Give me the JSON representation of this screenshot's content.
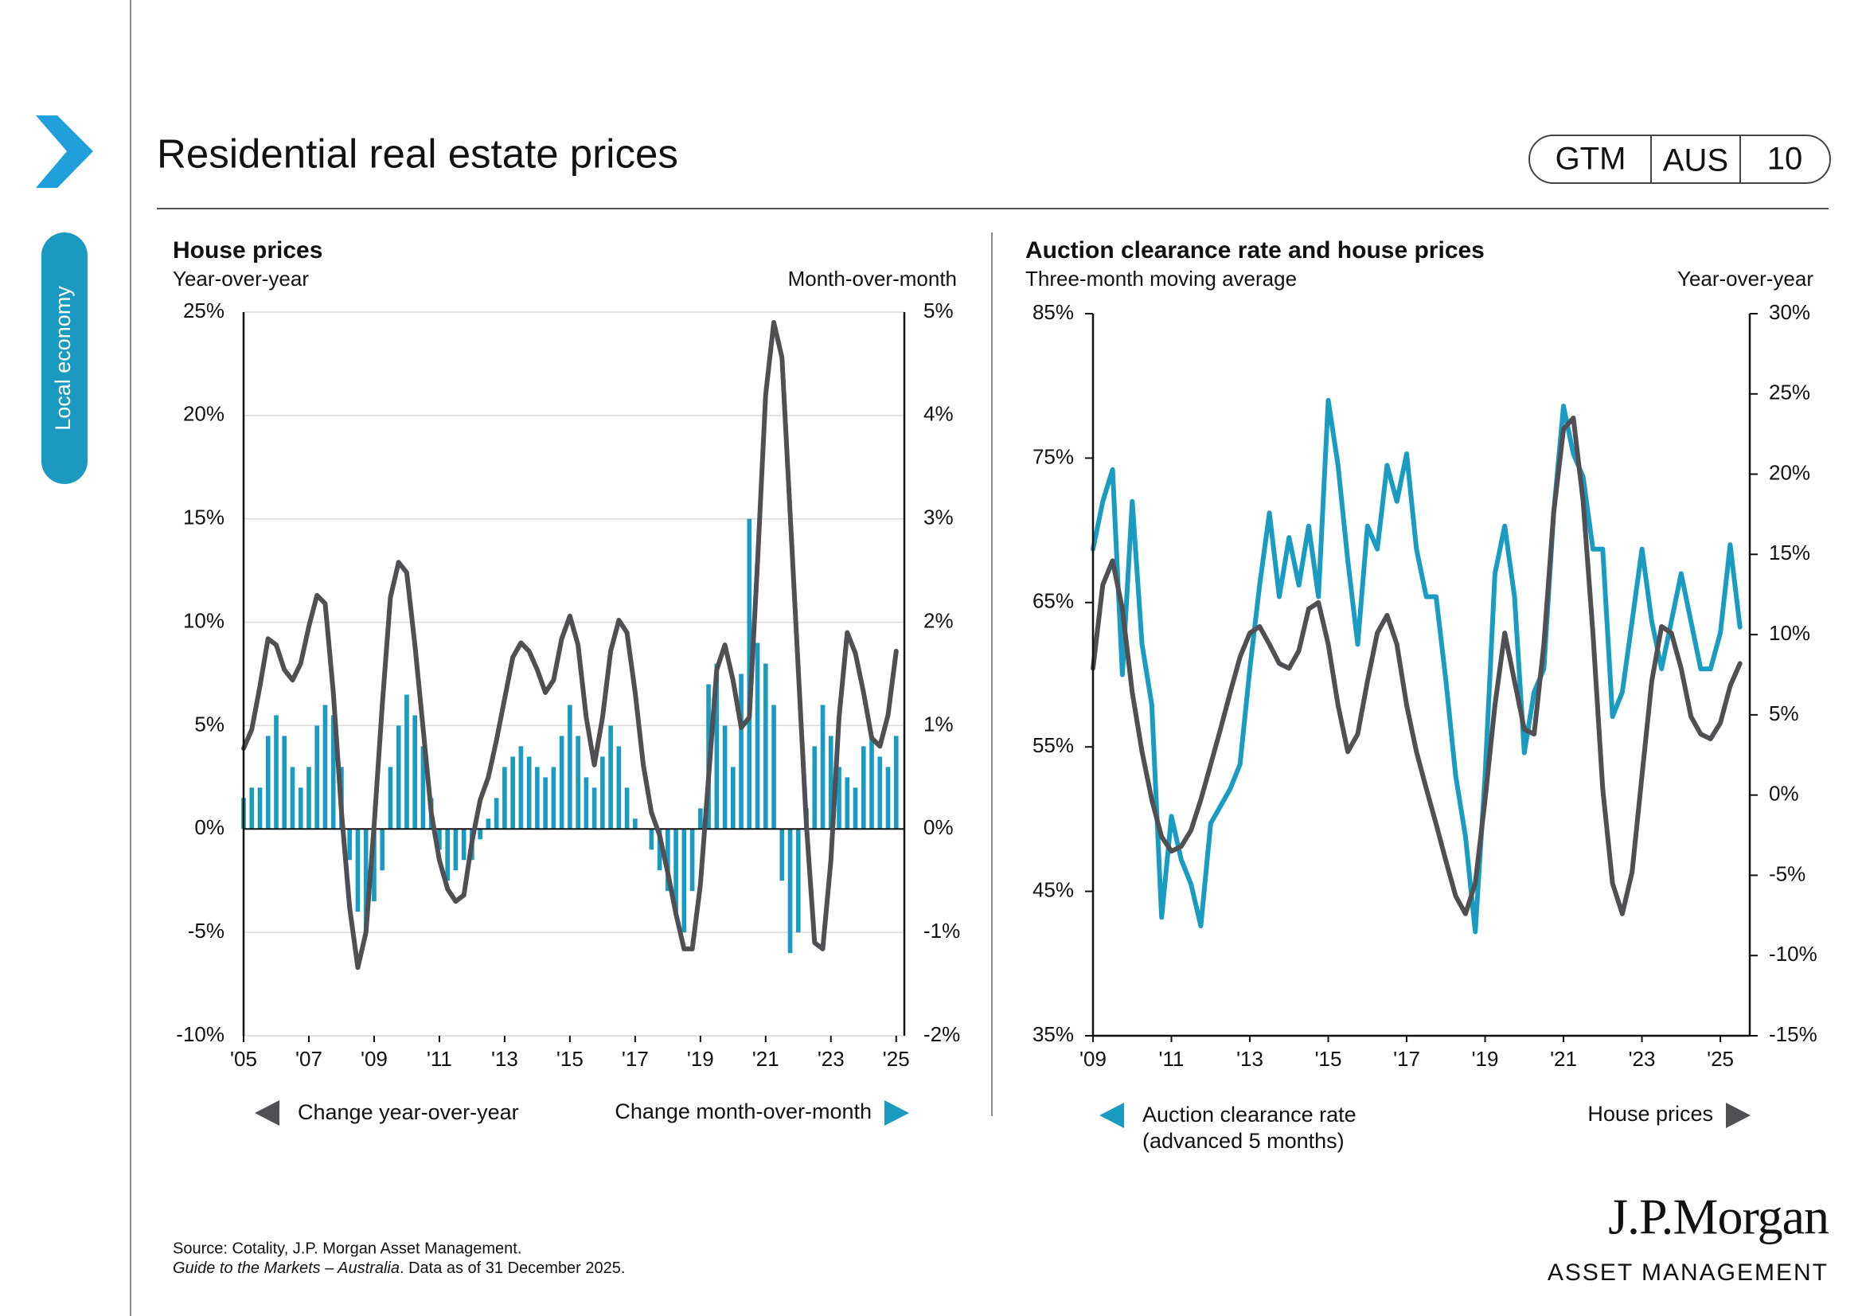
{
  "page": {
    "title": "Residential real estate prices",
    "badge": [
      "GTM",
      "AUS",
      "10"
    ],
    "sidebar_label": "Local economy",
    "source": "Source: Cotality, J.P. Morgan Asset Management.",
    "guide_title": "Guide to the Markets – Australia",
    "data_note": ". Data as of 31 December 2025.",
    "logo_main": "J.P.Morgan",
    "logo_sub": "ASSET MANAGEMENT"
  },
  "chart_data": [
    {
      "type": "combo",
      "title": "House prices",
      "subtitle": "Year-over-year",
      "y2_label": "Month-over-month",
      "grid": true,
      "x": [
        2005,
        2005.25,
        2005.5,
        2005.75,
        2006,
        2006.25,
        2006.5,
        2006.75,
        2007,
        2007.25,
        2007.5,
        2007.75,
        2008,
        2008.25,
        2008.5,
        2008.75,
        2009,
        2009.25,
        2009.5,
        2009.75,
        2010,
        2010.25,
        2010.5,
        2010.75,
        2011,
        2011.25,
        2011.5,
        2011.75,
        2012,
        2012.25,
        2012.5,
        2012.75,
        2013,
        2013.25,
        2013.5,
        2013.75,
        2014,
        2014.25,
        2014.5,
        2014.75,
        2015,
        2015.25,
        2015.5,
        2015.75,
        2016,
        2016.25,
        2016.5,
        2016.75,
        2017,
        2017.25,
        2017.5,
        2017.75,
        2018,
        2018.25,
        2018.5,
        2018.75,
        2019,
        2019.25,
        2019.5,
        2019.75,
        2020,
        2020.25,
        2020.5,
        2020.75,
        2021,
        2021.25,
        2021.5,
        2021.75,
        2022,
        2022.25,
        2022.5,
        2022.75,
        2023,
        2023.25,
        2023.5,
        2023.75,
        2024,
        2024.25,
        2024.5,
        2024.75,
        2025
      ],
      "xlim": [
        2005,
        2025.25
      ],
      "xticks": [
        {
          "value": 2005,
          "label": "'05"
        },
        {
          "value": 2007,
          "label": "'07"
        },
        {
          "value": 2009,
          "label": "'09"
        },
        {
          "value": 2011,
          "label": "'11"
        },
        {
          "value": 2013,
          "label": "'13"
        },
        {
          "value": 2015,
          "label": "'15"
        },
        {
          "value": 2017,
          "label": "'17"
        },
        {
          "value": 2019,
          "label": "'19"
        },
        {
          "value": 2021,
          "label": "'21"
        },
        {
          "value": 2023,
          "label": "'23"
        },
        {
          "value": 2025,
          "label": "'25"
        }
      ],
      "ylim": [
        -10,
        25
      ],
      "yticks": [
        {
          "value": -10,
          "label": "-10%"
        },
        {
          "value": -5,
          "label": "-5%"
        },
        {
          "value": 0,
          "label": "0%"
        },
        {
          "value": 5,
          "label": "5%"
        },
        {
          "value": 10,
          "label": "10%"
        },
        {
          "value": 15,
          "label": "15%"
        },
        {
          "value": 20,
          "label": "20%"
        },
        {
          "value": 25,
          "label": "25%"
        }
      ],
      "y2lim": [
        -2,
        5
      ],
      "y2ticks": [
        {
          "value": -2,
          "label": "-2%"
        },
        {
          "value": -1,
          "label": "-1%"
        },
        {
          "value": 0,
          "label": "0%"
        },
        {
          "value": 1,
          "label": "1%"
        },
        {
          "value": 2,
          "label": "2%"
        },
        {
          "value": 3,
          "label": "3%"
        },
        {
          "value": 4,
          "label": "4%"
        },
        {
          "value": 5,
          "label": "5%"
        }
      ],
      "series": [
        {
          "name": "Change year-over-year",
          "type": "line",
          "color": "#505054",
          "values": [
            3.9,
            4.8,
            6.9,
            9.2,
            8.9,
            7.7,
            7.2,
            8.0,
            9.8,
            11.3,
            10.9,
            6.6,
            0.8,
            -3.8,
            -6.7,
            -5.0,
            0.2,
            6.0,
            11.2,
            12.9,
            12.4,
            8.9,
            4.9,
            0.8,
            -1.5,
            -2.9,
            -3.5,
            -3.2,
            -0.6,
            1.4,
            2.5,
            4.3,
            6.3,
            8.3,
            9.0,
            8.6,
            7.7,
            6.6,
            7.2,
            9.2,
            10.3,
            8.9,
            5.4,
            3.1,
            5.4,
            8.6,
            10.1,
            9.5,
            6.6,
            3.1,
            0.8,
            -0.3,
            -2.1,
            -4.1,
            -5.8,
            -5.8,
            -2.7,
            2.5,
            7.7,
            8.9,
            7.2,
            4.9,
            5.4,
            12.9,
            21.0,
            24.5,
            22.8,
            15.3,
            7.7,
            0.2,
            -5.5,
            -5.8,
            -1.5,
            5.4,
            9.5,
            8.5,
            6.6,
            4.4,
            4.0,
            5.5,
            8.6
          ]
        },
        {
          "name": "Change month-over-month",
          "type": "bar",
          "axis": "y2",
          "color": "#1a9bc1",
          "values": [
            0.3,
            0.4,
            0.4,
            0.9,
            1.1,
            0.9,
            0.6,
            0.4,
            0.6,
            1.0,
            1.2,
            1.1,
            0.6,
            -0.3,
            -0.8,
            -1.0,
            -0.7,
            -0.4,
            0.6,
            1.0,
            1.3,
            1.1,
            0.8,
            0.3,
            -0.2,
            -0.5,
            -0.4,
            -0.3,
            -0.3,
            -0.1,
            0.1,
            0.3,
            0.6,
            0.7,
            0.8,
            0.7,
            0.6,
            0.5,
            0.6,
            0.9,
            1.2,
            0.9,
            0.5,
            0.4,
            0.7,
            1.0,
            0.8,
            0.4,
            0.1,
            0.0,
            -0.2,
            -0.4,
            -0.6,
            -0.8,
            -1.0,
            -0.6,
            0.2,
            1.4,
            1.6,
            1.0,
            0.6,
            1.5,
            3.0,
            1.8,
            1.6,
            1.2,
            -0.5,
            -1.2,
            -1.0,
            0.2,
            0.8,
            1.2,
            0.9,
            0.6,
            0.5,
            0.4,
            0.8,
            0.9,
            0.7,
            0.6,
            0.9
          ]
        }
      ]
    },
    {
      "type": "line",
      "title": "Auction clearance rate and house prices",
      "subtitle": "Three-month moving average",
      "y2_label": "Year-over-year",
      "grid": false,
      "x": [
        2009,
        2009.25,
        2009.5,
        2009.75,
        2010,
        2010.25,
        2010.5,
        2010.75,
        2011,
        2011.25,
        2011.5,
        2011.75,
        2012,
        2012.25,
        2012.5,
        2012.75,
        2013,
        2013.25,
        2013.5,
        2013.75,
        2014,
        2014.25,
        2014.5,
        2014.75,
        2015,
        2015.25,
        2015.5,
        2015.75,
        2016,
        2016.25,
        2016.5,
        2016.75,
        2017,
        2017.25,
        2017.5,
        2017.75,
        2018,
        2018.25,
        2018.5,
        2018.75,
        2019,
        2019.25,
        2019.5,
        2019.75,
        2020,
        2020.25,
        2020.5,
        2020.75,
        2021,
        2021.25,
        2021.5,
        2021.75,
        2022,
        2022.25,
        2022.5,
        2022.75,
        2023,
        2023.25,
        2023.5,
        2023.75,
        2024,
        2024.25,
        2024.5,
        2024.75,
        2025,
        2025.25,
        2025.5
      ],
      "xlim": [
        2009,
        2025.75
      ],
      "xticks": [
        {
          "value": 2009,
          "label": "'09"
        },
        {
          "value": 2011,
          "label": "'11"
        },
        {
          "value": 2013,
          "label": "'13"
        },
        {
          "value": 2015,
          "label": "'15"
        },
        {
          "value": 2017,
          "label": "'17"
        },
        {
          "value": 2019,
          "label": "'19"
        },
        {
          "value": 2021,
          "label": "'21"
        },
        {
          "value": 2023,
          "label": "'23"
        },
        {
          "value": 2025,
          "label": "'25"
        }
      ],
      "ylim": [
        35,
        85
      ],
      "yticks": [
        {
          "value": 35,
          "label": "35%"
        },
        {
          "value": 45,
          "label": "45%"
        },
        {
          "value": 55,
          "label": "55%"
        },
        {
          "value": 65,
          "label": "65%"
        },
        {
          "value": 75,
          "label": "75%"
        },
        {
          "value": 85,
          "label": "85%"
        }
      ],
      "y2lim": [
        -15,
        30
      ],
      "y2ticks": [
        {
          "value": -15,
          "label": "-15%"
        },
        {
          "value": -10,
          "label": "-10%"
        },
        {
          "value": -5,
          "label": "-5%"
        },
        {
          "value": 0,
          "label": "0%"
        },
        {
          "value": 5,
          "label": "5%"
        },
        {
          "value": 10,
          "label": "10%"
        },
        {
          "value": 15,
          "label": "15%"
        },
        {
          "value": 20,
          "label": "20%"
        },
        {
          "value": 25,
          "label": "25%"
        },
        {
          "value": 30,
          "label": "30%"
        }
      ],
      "series": [
        {
          "name": "Auction clearance rate (advanced 5 months)",
          "color": "#1a9bc1",
          "values": [
            68.7,
            72.0,
            74.2,
            60.0,
            72.0,
            62.1,
            57.9,
            43.2,
            50.2,
            47.2,
            45.5,
            42.6,
            49.7,
            50.9,
            52.1,
            53.8,
            60.4,
            66.2,
            71.2,
            65.4,
            69.5,
            66.2,
            70.3,
            65.4,
            79.0,
            74.5,
            67.9,
            62.1,
            70.3,
            68.7,
            74.5,
            72.0,
            75.3,
            68.7,
            65.4,
            65.4,
            59.6,
            53.0,
            48.8,
            42.2,
            53.0,
            67.0,
            70.3,
            65.4,
            54.6,
            58.8,
            60.4,
            71.2,
            78.6,
            75.3,
            73.7,
            68.7,
            68.7,
            57.1,
            58.8,
            63.7,
            68.7,
            63.7,
            60.4,
            63.7,
            67.0,
            63.7,
            60.4,
            60.4,
            62.9,
            69.0,
            63.3
          ]
        },
        {
          "name": "House prices",
          "axis": "y2",
          "color": "#505054",
          "values": [
            7.9,
            13.1,
            14.6,
            11.6,
            6.4,
            2.7,
            -0.3,
            -2.6,
            -3.5,
            -3.2,
            -2.2,
            -0.3,
            1.9,
            4.1,
            6.4,
            8.6,
            10.1,
            10.5,
            9.4,
            8.2,
            7.9,
            9.0,
            11.6,
            12.0,
            9.4,
            5.6,
            2.7,
            3.8,
            7.1,
            10.1,
            11.2,
            9.4,
            5.6,
            2.7,
            0.4,
            -1.8,
            -4.1,
            -6.3,
            -7.4,
            -5.5,
            -0.3,
            5.6,
            10.1,
            7.1,
            4.1,
            3.8,
            9.4,
            17.6,
            22.8,
            23.5,
            18.3,
            10.1,
            0.4,
            -5.5,
            -7.4,
            -4.8,
            1.2,
            7.1,
            10.5,
            10.1,
            7.9,
            4.9,
            3.8,
            3.5,
            4.5,
            6.8,
            8.2
          ]
        }
      ]
    }
  ]
}
